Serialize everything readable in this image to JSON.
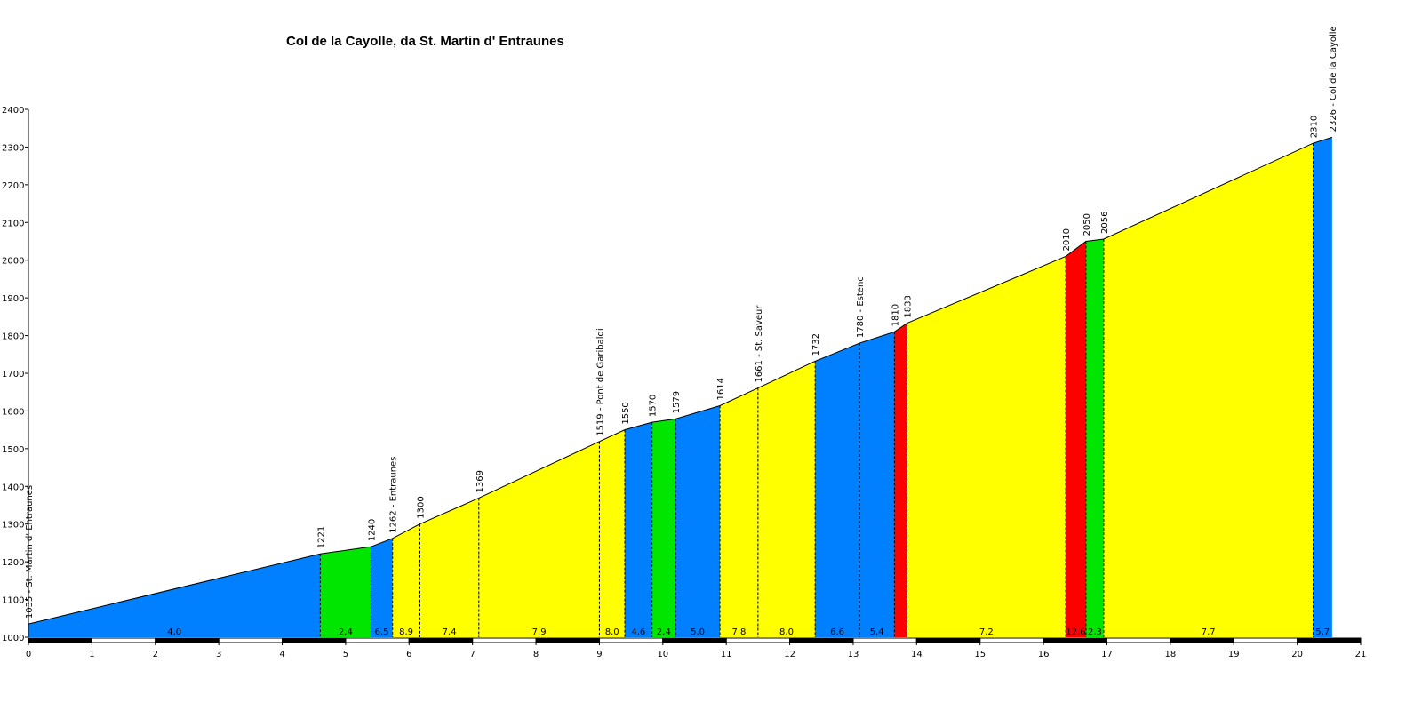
{
  "chart_data": {
    "type": "area",
    "title": "Col de la Cayolle, da St. Martin d' Entraunes",
    "xlabel": "",
    "ylabel": "",
    "xlim": [
      0,
      21
    ],
    "ylim": [
      1000,
      2400
    ],
    "x_ticks": [
      "0",
      "1",
      "2",
      "3",
      "4",
      "5",
      "6",
      "7",
      "8",
      "9",
      "10",
      "11",
      "12",
      "13",
      "14",
      "15",
      "16",
      "17",
      "18",
      "19",
      "20",
      "21"
    ],
    "y_ticks": [
      "1000",
      "1100",
      "1200",
      "1300",
      "1400",
      "1500",
      "1600",
      "1700",
      "1800",
      "1900",
      "2000",
      "2100",
      "2200",
      "2300",
      "2400"
    ],
    "grade_colors": {
      "blue": "#0080ff",
      "green": "#00e600",
      "yellow": "#ffff00",
      "red": "#ff0000"
    },
    "profile_points": [
      {
        "km": 0.0,
        "alt": 1035,
        "label": "1035 - St. Martin d' Entraunes"
      },
      {
        "km": 4.6,
        "alt": 1221,
        "label": "1221"
      },
      {
        "km": 5.4,
        "alt": 1240,
        "label": "1240"
      },
      {
        "km": 5.74,
        "alt": 1262,
        "label": "1262 - Entraunes"
      },
      {
        "km": 6.17,
        "alt": 1300,
        "label": "1300"
      },
      {
        "km": 7.1,
        "alt": 1369,
        "label": "1369"
      },
      {
        "km": 9.0,
        "alt": 1519,
        "label": "1519 - Pont de Garibaldi"
      },
      {
        "km": 9.4,
        "alt": 1550,
        "label": "1550"
      },
      {
        "km": 9.83,
        "alt": 1570,
        "label": "1570"
      },
      {
        "km": 10.2,
        "alt": 1579,
        "label": "1579"
      },
      {
        "km": 10.9,
        "alt": 1614,
        "label": "1614"
      },
      {
        "km": 11.5,
        "alt": 1661,
        "label": "1661 - St. Saveur"
      },
      {
        "km": 12.4,
        "alt": 1732,
        "label": "1732"
      },
      {
        "km": 13.1,
        "alt": 1780,
        "label": "1780 - Estenc"
      },
      {
        "km": 13.65,
        "alt": 1810,
        "label": "1810"
      },
      {
        "km": 13.85,
        "alt": 1833,
        "label": "1833"
      },
      {
        "km": 16.35,
        "alt": 2010,
        "label": "2010"
      },
      {
        "km": 16.67,
        "alt": 2050,
        "label": "2050"
      },
      {
        "km": 16.95,
        "alt": 2056,
        "label": "2056"
      },
      {
        "km": 20.25,
        "alt": 2310,
        "label": "2310"
      },
      {
        "km": 20.55,
        "alt": 2326,
        "label": "2326 - Col de la Cayolle"
      }
    ],
    "segments": [
      {
        "from_km": 0.0,
        "to_km": 4.6,
        "grade": "4,0",
        "color": "blue"
      },
      {
        "from_km": 4.6,
        "to_km": 5.4,
        "grade": "2,4",
        "color": "green"
      },
      {
        "from_km": 5.4,
        "to_km": 5.74,
        "grade": "6,5",
        "color": "blue"
      },
      {
        "from_km": 5.74,
        "to_km": 6.17,
        "grade": "8,9",
        "color": "yellow"
      },
      {
        "from_km": 6.17,
        "to_km": 7.1,
        "grade": "7,4",
        "color": "yellow"
      },
      {
        "from_km": 7.1,
        "to_km": 9.0,
        "grade": "7,9",
        "color": "yellow"
      },
      {
        "from_km": 9.0,
        "to_km": 9.4,
        "grade": "8,0",
        "color": "yellow"
      },
      {
        "from_km": 9.4,
        "to_km": 9.83,
        "grade": "4,6",
        "color": "blue"
      },
      {
        "from_km": 9.83,
        "to_km": 10.2,
        "grade": "2,4",
        "color": "green"
      },
      {
        "from_km": 10.2,
        "to_km": 10.9,
        "grade": "5,0",
        "color": "blue"
      },
      {
        "from_km": 10.9,
        "to_km": 11.5,
        "grade": "7,8",
        "color": "yellow"
      },
      {
        "from_km": 11.5,
        "to_km": 12.4,
        "grade": "8,0",
        "color": "yellow"
      },
      {
        "from_km": 12.4,
        "to_km": 13.1,
        "grade": "6,6",
        "color": "blue"
      },
      {
        "from_km": 13.1,
        "to_km": 13.65,
        "grade": "5,4",
        "color": "blue"
      },
      {
        "from_km": 13.65,
        "to_km": 13.85,
        "grade": "",
        "color": "red"
      },
      {
        "from_km": 13.85,
        "to_km": 16.35,
        "grade": "7,2",
        "color": "yellow"
      },
      {
        "from_km": 16.35,
        "to_km": 16.67,
        "grade": "12,6",
        "color": "red"
      },
      {
        "from_km": 16.67,
        "to_km": 16.95,
        "grade": "2,3",
        "color": "green"
      },
      {
        "from_km": 16.95,
        "to_km": 20.25,
        "grade": "7,7",
        "color": "yellow"
      },
      {
        "from_km": 20.25,
        "to_km": 20.55,
        "grade": "5,7",
        "color": "blue"
      }
    ]
  }
}
